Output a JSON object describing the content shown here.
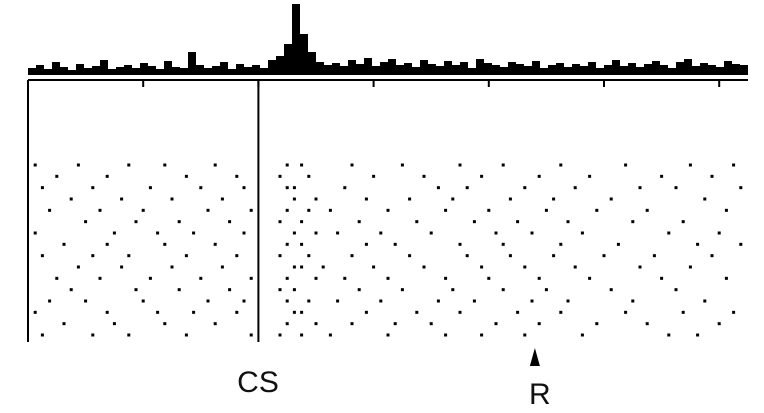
{
  "chart_data": {
    "type": "raster",
    "xlim": [
      0,
      100
    ],
    "xticks": [
      0,
      16,
      32,
      48,
      64,
      80,
      96
    ],
    "hist_ylim": [
      0,
      70
    ],
    "hist_values": [
      6,
      9,
      5,
      12,
      7,
      4,
      10,
      6,
      8,
      14,
      5,
      7,
      9,
      6,
      11,
      8,
      5,
      13,
      7,
      6,
      22,
      9,
      6,
      8,
      12,
      5,
      10,
      7,
      9,
      6,
      14,
      18,
      30,
      70,
      40,
      22,
      12,
      9,
      11,
      8,
      14,
      10,
      16,
      8,
      12,
      15,
      9,
      11,
      7,
      14,
      10,
      8,
      13,
      9,
      12,
      6,
      15,
      11,
      9,
      7,
      12,
      10,
      8,
      13,
      6,
      9,
      11,
      7,
      10,
      8,
      12,
      6,
      9,
      14,
      8,
      11,
      7,
      10,
      13,
      9,
      6,
      12,
      15,
      8,
      11,
      9,
      7,
      13,
      10,
      9
    ],
    "color": "#000000",
    "cs_time": 32,
    "cs_label": "CS",
    "r_time": 70.4,
    "r_label": "R",
    "trials": [
      [
        1,
        7,
        14,
        19,
        26,
        36,
        38,
        45,
        52,
        60,
        66,
        74,
        83,
        92,
        98
      ],
      [
        4,
        11,
        22,
        29,
        35,
        39,
        48,
        55,
        63,
        71,
        78,
        88,
        95
      ],
      [
        2,
        9,
        17,
        24,
        30,
        36,
        37,
        44,
        57,
        61,
        69,
        76,
        85,
        90,
        99
      ],
      [
        6,
        13,
        20,
        27,
        37,
        40,
        47,
        53,
        59,
        67,
        73,
        81,
        94
      ],
      [
        3,
        10,
        16,
        25,
        31,
        36,
        39,
        42,
        50,
        58,
        64,
        72,
        79,
        86,
        97
      ],
      [
        8,
        15,
        21,
        28,
        35,
        38,
        46,
        54,
        62,
        68,
        75,
        84,
        91
      ],
      [
        1,
        12,
        18,
        23,
        30,
        37,
        40,
        43,
        49,
        56,
        65,
        70,
        77,
        89,
        96
      ],
      [
        5,
        11,
        19,
        26,
        36,
        38,
        47,
        51,
        60,
        66,
        74,
        82,
        93,
        99
      ],
      [
        2,
        9,
        14,
        22,
        29,
        35,
        39,
        45,
        53,
        61,
        67,
        73,
        80,
        87,
        95
      ],
      [
        7,
        13,
        20,
        27,
        37,
        38,
        41,
        48,
        55,
        63,
        69,
        76,
        85,
        92
      ],
      [
        4,
        10,
        17,
        24,
        31,
        36,
        40,
        44,
        50,
        58,
        64,
        71,
        78,
        88,
        97
      ],
      [
        6,
        15,
        21,
        28,
        35,
        37,
        46,
        52,
        59,
        66,
        72,
        81,
        90
      ],
      [
        3,
        8,
        16,
        25,
        30,
        36,
        39,
        43,
        49,
        57,
        62,
        70,
        75,
        84,
        94
      ],
      [
        1,
        11,
        18,
        23,
        29,
        37,
        38,
        47,
        54,
        60,
        68,
        74,
        83,
        91,
        98
      ],
      [
        5,
        12,
        19,
        26,
        36,
        40,
        45,
        51,
        56,
        65,
        71,
        79,
        86,
        96
      ],
      [
        2,
        9,
        14,
        22,
        31,
        35,
        38,
        42,
        50,
        58,
        63,
        69,
        77,
        89,
        93
      ]
    ]
  }
}
